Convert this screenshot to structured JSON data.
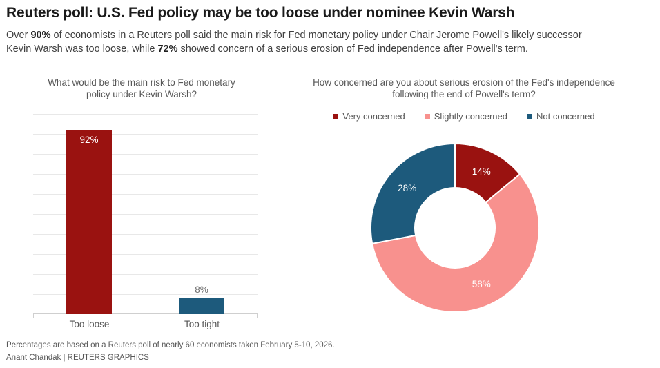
{
  "header": {
    "title": "Reuters poll: U.S. Fed policy may be too loose under nominee Kevin Warsh",
    "subtitle_lines": [
      {
        "segments": [
          {
            "text": "Over ",
            "bold": false
          },
          {
            "text": "90%",
            "bold": true
          },
          {
            "text": " of economists in a Reuters poll said the main risk for Fed monetary policy under Chair Jerome Powell's likely successor",
            "bold": false
          }
        ]
      },
      {
        "segments": [
          {
            "text": "Kevin Warsh was too loose, while ",
            "bold": false
          },
          {
            "text": "72%",
            "bold": true
          },
          {
            "text": " showed concern of a serious erosion of Fed independence after Powell's term.",
            "bold": false
          }
        ]
      }
    ]
  },
  "colors": {
    "dark_red": "#9a1210",
    "pink": "#f8918e",
    "dark_blue": "#1d5a7c",
    "gridline": "#e8e8e8",
    "axis": "#cfcfcf",
    "divider": "#cccccc",
    "value_inside": "#ffffff",
    "value_outside": "#6e6e6e",
    "muted_text": "#575757"
  },
  "chart_data": [
    {
      "type": "bar",
      "title_lines": [
        "What would be the main risk to Fed monetary",
        "policy under Kevin Warsh?"
      ],
      "categories": [
        "Too loose",
        "Too tight"
      ],
      "values": [
        92,
        8
      ],
      "value_labels": [
        "92%",
        "8%"
      ],
      "bar_colors": [
        "#9a1210",
        "#1d5a7c"
      ],
      "ylim": [
        0,
        100
      ],
      "grid_step": 10,
      "grid": "on",
      "xlabel": "",
      "ylabel": ""
    },
    {
      "type": "pie",
      "subtype": "donut",
      "title_lines": [
        "How concerned are you about serious erosion of the Fed's independence",
        "following the end of Powell's term?"
      ],
      "labels": [
        "Very concerned",
        "Slightly concerned",
        "Not concerned"
      ],
      "values": [
        14,
        58,
        28
      ],
      "slice_labels": [
        "14%",
        "58%",
        "28%"
      ],
      "slice_colors": [
        "#9a1210",
        "#f8918e",
        "#1d5a7c"
      ],
      "legend_position": "top",
      "start_angle_deg": 0,
      "direction": "clockwise"
    }
  ],
  "footer": {
    "note": "Percentages are based on a Reuters poll of nearly 60 economists taken February 5-10, 2026.",
    "byline": "Anant Chandak | REUTERS GRAPHICS"
  }
}
